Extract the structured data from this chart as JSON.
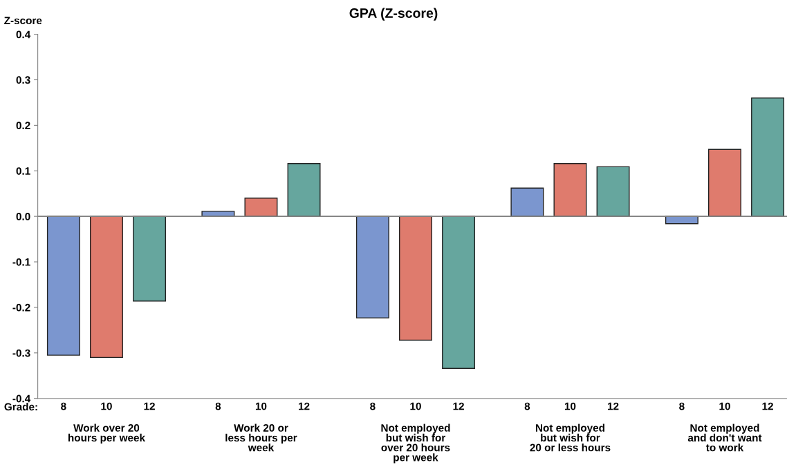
{
  "chart_data": {
    "type": "bar",
    "title": "GPA (Z-score)",
    "ylabel": "Z-score",
    "legend_title": "Grade:",
    "categories": [
      "8",
      "10",
      "12",
      "8",
      "10",
      "12",
      "8",
      "10",
      "12",
      "8",
      "10",
      "12",
      "8",
      "10",
      "12"
    ],
    "values": [
      -0.305,
      -0.31,
      -0.186,
      0.011,
      0.04,
      0.116,
      -0.223,
      -0.272,
      -0.334,
      0.062,
      0.116,
      0.109,
      -0.016,
      0.147,
      0.26
    ],
    "colors": [
      "#7b96cf",
      "#df7b6d",
      "#66a69e",
      "#7b96cf",
      "#df7b6d",
      "#66a69e",
      "#7b96cf",
      "#df7b6d",
      "#66a69e",
      "#7b96cf",
      "#df7b6d",
      "#66a69e",
      "#7b96cf",
      "#df7b6d",
      "#66a69e"
    ],
    "annotations": [
      "Work over 20\nhours per week",
      "Work 20 or\nless hours per\nweek",
      "Not employed\nbut wish for\nover 20 hours\nper week",
      "Not employed\nbut wish for\n20 or less hours",
      "Not employed\nand don't want\nto work"
    ],
    "ylim": [
      -0.4,
      0.4
    ],
    "yticks": [
      {
        "value": -0.4,
        "label": "-0.4"
      },
      {
        "value": -0.3,
        "label": "-0.3"
      },
      {
        "value": -0.2,
        "label": "-0.2"
      },
      {
        "value": -0.1,
        "label": "-0.1"
      },
      {
        "value": 0,
        "label": "0.0"
      },
      {
        "value": 0.1,
        "label": "0.1"
      },
      {
        "value": 0.2,
        "label": "0.2"
      },
      {
        "value": 0.3,
        "label": "0.3"
      },
      {
        "value": 0.4,
        "label": "0.4"
      }
    ],
    "ref_lines": [
      {
        "axis": "y",
        "value": 0,
        "color": "#808080"
      }
    ],
    "grid": false,
    "legend": false
  }
}
